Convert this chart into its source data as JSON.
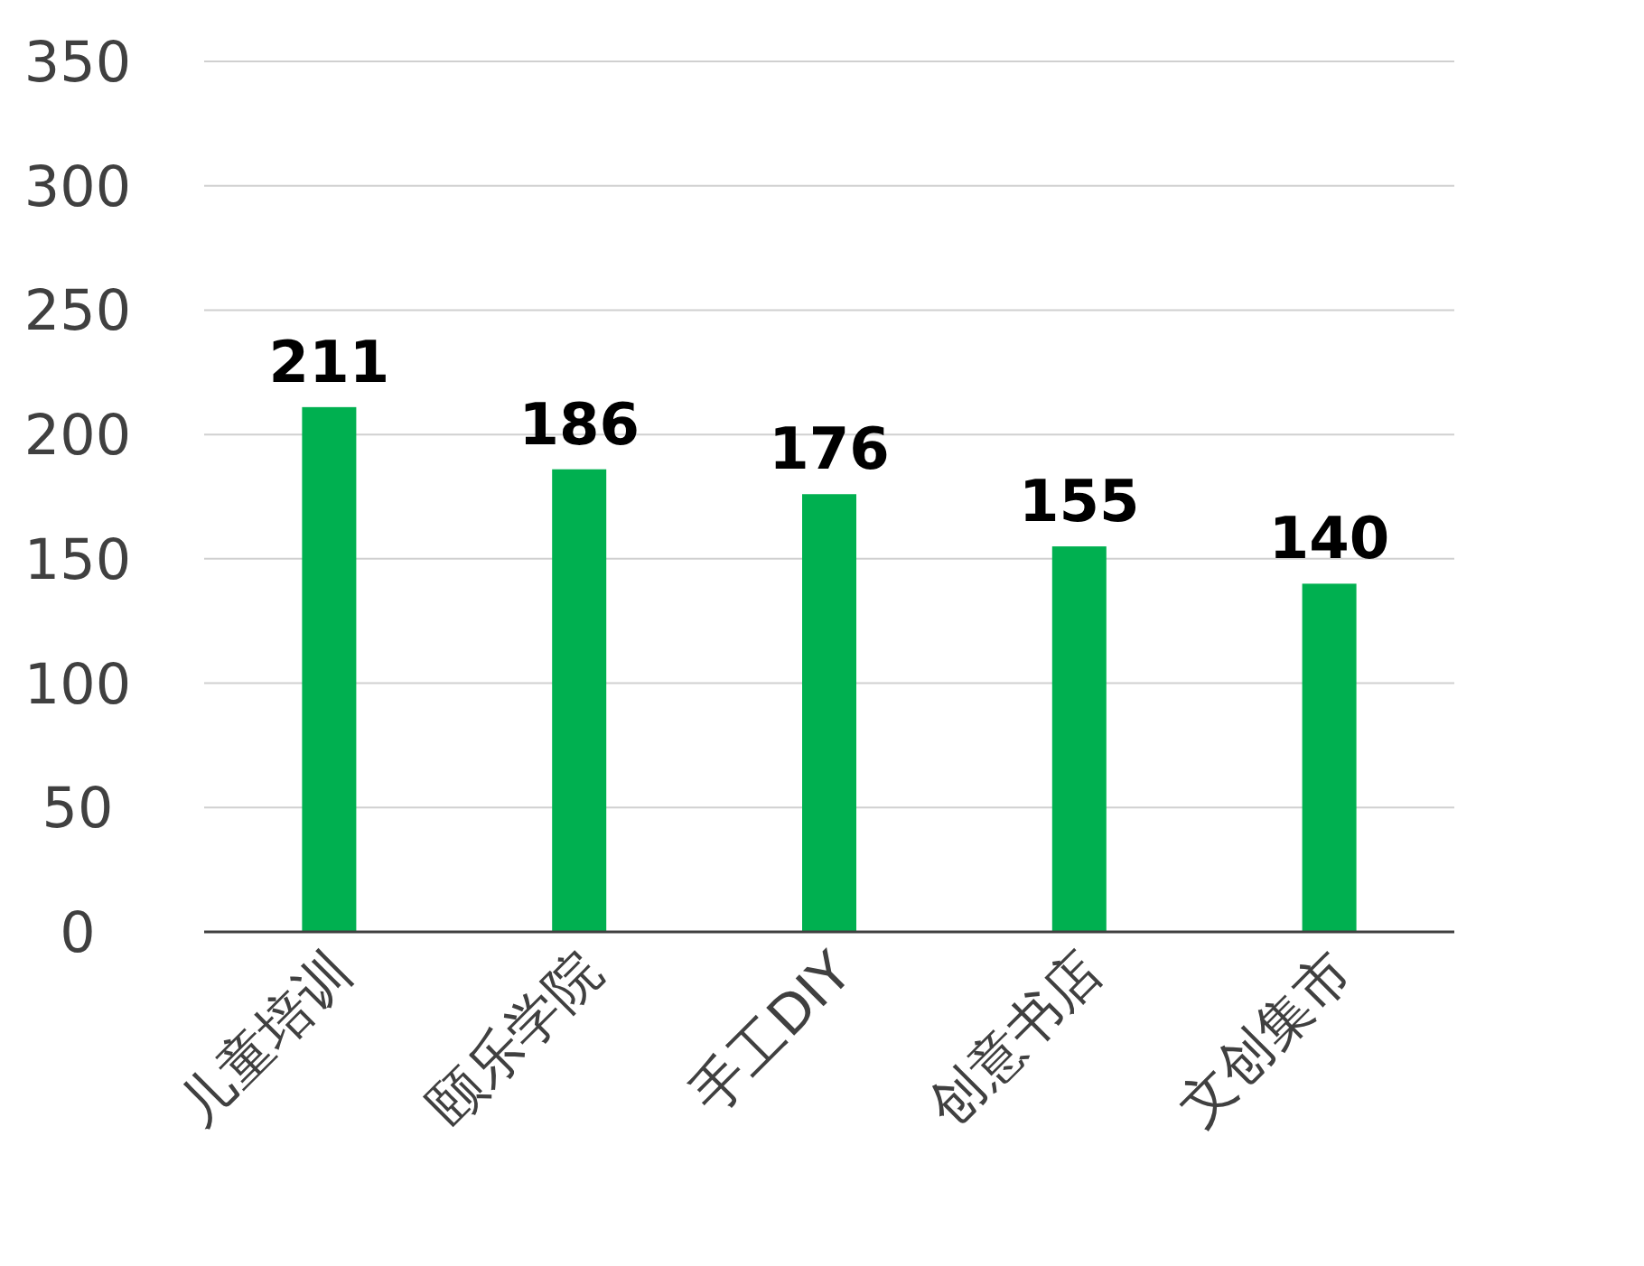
{
  "chart_data": {
    "type": "bar",
    "categories": [
      "儿童培训",
      "颐乐学院",
      "手工DIY",
      "创意书店",
      "文创集市"
    ],
    "values": [
      211,
      186,
      176,
      155,
      140
    ],
    "color": "#00b050",
    "ylim": [
      0,
      350
    ],
    "yticks": [
      0,
      50,
      100,
      150,
      200,
      250,
      300,
      350
    ],
    "grid": "y",
    "data_labels": true
  }
}
